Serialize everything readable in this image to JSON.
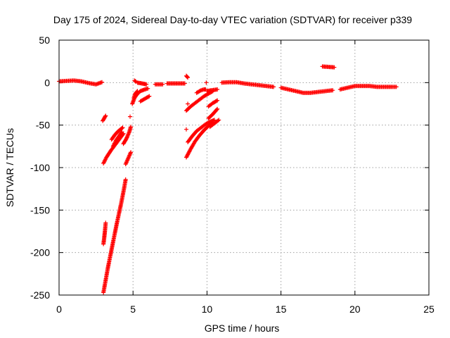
{
  "chart_data": {
    "type": "scatter",
    "title": "Day 175 of 2024, Sidereal Day-to-day VTEC variation (SDTVAR) for receiver p339",
    "xlabel": "GPS time / hours",
    "ylabel": "SDTVAR / TECUs",
    "xlim": [
      0,
      25
    ],
    "ylim": [
      -250,
      50
    ],
    "xticks": [
      0,
      5,
      10,
      15,
      20,
      25
    ],
    "yticks": [
      -250,
      -200,
      -150,
      -100,
      -50,
      0,
      50
    ],
    "grid": true,
    "marker": "+",
    "color": "#ff0000",
    "segments": [
      {
        "x": [
          0.0,
          0.5,
          1.0,
          1.5,
          2.0,
          2.5,
          2.9
        ],
        "y": [
          1.5,
          2.0,
          2.5,
          1.5,
          -0.5,
          -2.0,
          0.5
        ]
      },
      {
        "x": [
          2.95,
          3.05,
          3.15
        ],
        "y": [
          -45,
          -42,
          -39
        ]
      },
      {
        "x": [
          3.0,
          3.2,
          3.5,
          3.8,
          4.1,
          4.35
        ],
        "y": [
          -95,
          -88,
          -80,
          -73,
          -66,
          -60
        ]
      },
      {
        "x": [
          3.55,
          3.75,
          3.95,
          4.15,
          4.3
        ],
        "y": [
          -67,
          -62,
          -58,
          -55,
          -53
        ]
      },
      {
        "x": [
          3.65,
          3.85,
          4.05,
          4.25
        ],
        "y": [
          -75,
          -68,
          -63,
          -58
        ]
      },
      {
        "x": [
          4.35,
          4.55,
          4.75,
          4.85
        ],
        "y": [
          -72,
          -66,
          -58,
          -52
        ]
      },
      {
        "x": [
          4.5,
          4.65,
          4.85
        ],
        "y": [
          -96,
          -90,
          -82
        ]
      },
      {
        "x": [
          4.4,
          4.5
        ],
        "y": [
          -124,
          -114
        ]
      },
      {
        "x": [
          3.0,
          3.05,
          3.1,
          3.15
        ],
        "y": [
          -190,
          -183,
          -175,
          -165
        ]
      },
      {
        "x": [
          3.0,
          3.3,
          3.6,
          3.9,
          4.2,
          4.4
        ],
        "y": [
          -247,
          -218,
          -192,
          -166,
          -142,
          -124
        ]
      },
      {
        "x": [
          4.8
        ],
        "y": [
          -40
        ]
      },
      {
        "x": [
          4.95,
          5.1,
          5.3,
          5.5,
          5.8,
          6.0
        ],
        "y": [
          -25,
          -18,
          -13,
          -10,
          -8,
          -7
        ]
      },
      {
        "x": [
          5.05,
          5.15,
          5.3
        ],
        "y": [
          -18,
          -13,
          -10
        ]
      },
      {
        "x": [
          5.1,
          5.2
        ],
        "y": [
          2.5,
          1.0
        ]
      },
      {
        "x": [
          5.3,
          5.6,
          5.9
        ],
        "y": [
          0.0,
          -1.0,
          -2.0
        ]
      },
      {
        "x": [
          5.5,
          5.8,
          6.1
        ],
        "y": [
          -22,
          -19,
          -16
        ]
      },
      {
        "x": [
          6.5,
          7.0
        ],
        "y": [
          -2.0,
          -2.0
        ]
      },
      {
        "x": [
          7.3,
          7.7,
          8.1,
          8.5
        ],
        "y": [
          -1.0,
          -1.0,
          -1.0,
          -1.0
        ]
      },
      {
        "x": [
          8.6,
          8.7
        ],
        "y": [
          8.0,
          6.0
        ]
      },
      {
        "x": [
          8.6,
          8.9,
          9.2,
          9.5,
          9.8,
          10.1,
          10.4
        ],
        "y": [
          -33,
          -28,
          -24,
          -20,
          -16,
          -13,
          -10
        ]
      },
      {
        "x": [
          8.6,
          8.9,
          9.2,
          9.5,
          9.8,
          10.1,
          10.4
        ],
        "y": [
          -88,
          -78,
          -69,
          -62,
          -56,
          -51,
          -47
        ]
      },
      {
        "x": [
          8.7,
          9.0,
          9.3,
          9.6,
          9.9,
          10.2,
          10.5
        ],
        "y": [
          -70,
          -63,
          -57,
          -53,
          -49,
          -46,
          -44
        ]
      },
      {
        "x": [
          9.3,
          9.6,
          9.8,
          9.9
        ],
        "y": [
          -12,
          -9,
          -8,
          -8
        ]
      },
      {
        "x": [
          10.0,
          10.3,
          10.7
        ],
        "y": [
          -10,
          -9,
          -8
        ]
      },
      {
        "x": [
          10.1,
          10.4,
          10.7
        ],
        "y": [
          -28,
          -24,
          -21
        ]
      },
      {
        "x": [
          10.1,
          10.4,
          10.7
        ],
        "y": [
          -42,
          -37,
          -31
        ]
      },
      {
        "x": [
          10.2,
          10.5,
          10.8
        ],
        "y": [
          -52,
          -48,
          -44
        ]
      },
      {
        "x": [
          8.6
        ],
        "y": [
          -55
        ]
      },
      {
        "x": [
          8.7
        ],
        "y": [
          -25
        ]
      },
      {
        "x": [
          9.95
        ],
        "y": [
          0.0
        ]
      },
      {
        "x": [
          11.0,
          11.5,
          12.0,
          12.5,
          13.0,
          13.5,
          14.0,
          14.5
        ],
        "y": [
          0.0,
          0.5,
          0.5,
          -1.0,
          -2.0,
          -3.0,
          -4.0,
          -5.0
        ]
      },
      {
        "x": [
          15.0,
          15.5,
          16.0,
          16.5,
          17.0,
          17.5,
          18.0,
          18.5
        ],
        "y": [
          -6.0,
          -8.0,
          -10.0,
          -12.0,
          -12.0,
          -11.0,
          -10.0,
          -9.0
        ]
      },
      {
        "x": [
          19.0,
          19.5,
          20.0,
          20.5,
          21.0,
          21.5,
          22.0,
          22.5,
          22.8
        ],
        "y": [
          -8.0,
          -6.0,
          -4.0,
          -4.0,
          -4.0,
          -5.0,
          -5.0,
          -5.0,
          -5.0
        ]
      },
      {
        "x": [
          17.8,
          18.2,
          18.6
        ],
        "y": [
          19.0,
          18.5,
          18.0
        ]
      }
    ]
  }
}
